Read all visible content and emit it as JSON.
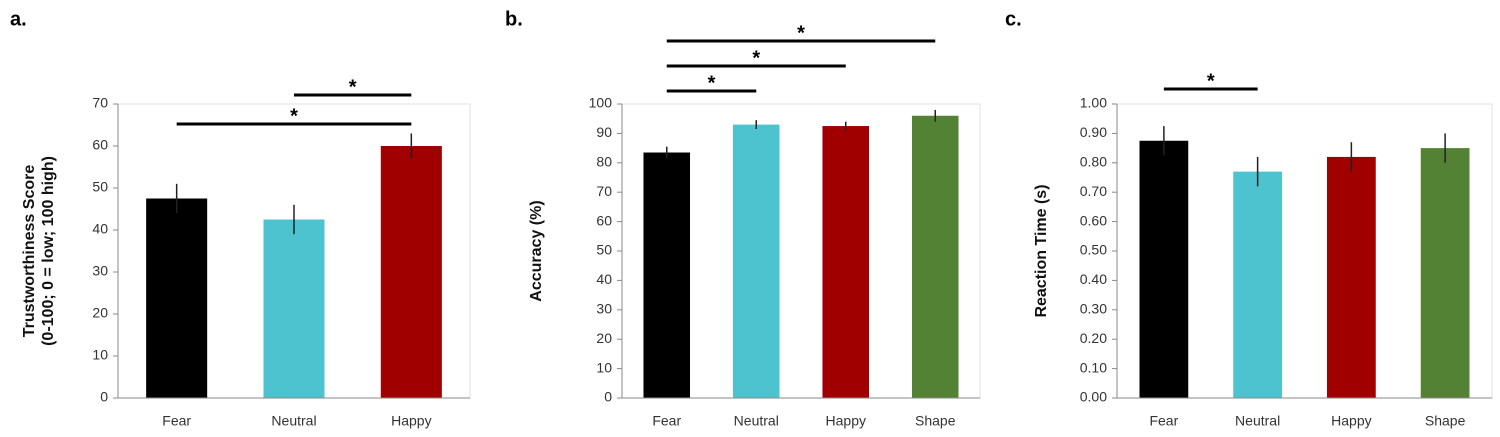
{
  "chart_data": [
    {
      "type": "bar",
      "panel_label": "a.",
      "ylabel": [
        "Trustworthiness Score",
        "(0-100; 0 = low; 100 high)"
      ],
      "categories": [
        "Fear",
        "Neutral",
        "Happy"
      ],
      "values": [
        47.5,
        42.5,
        60
      ],
      "errors": [
        3.5,
        3.5,
        3
      ],
      "colors": [
        "#000000",
        "#4dc3cf",
        "#a00000"
      ],
      "ylim": [
        0,
        70
      ],
      "yticks": [
        0,
        10,
        20,
        30,
        40,
        50,
        60,
        70
      ],
      "significance": [
        {
          "pair": [
            "Fear",
            "Happy"
          ],
          "label": "*"
        },
        {
          "pair": [
            "Neutral",
            "Happy"
          ],
          "label": "*"
        }
      ]
    },
    {
      "type": "bar",
      "panel_label": "b.",
      "ylabel": [
        "Accuracy (%)"
      ],
      "categories": [
        "Fear",
        "Neutral",
        "Happy",
        "Shape"
      ],
      "values": [
        83.5,
        93,
        92.5,
        96
      ],
      "errors": [
        2,
        1.5,
        1.5,
        2
      ],
      "colors": [
        "#000000",
        "#4dc3cf",
        "#a00000",
        "#548235"
      ],
      "ylim": [
        0,
        100
      ],
      "yticks": [
        0,
        10,
        20,
        30,
        40,
        50,
        60,
        70,
        80,
        90,
        100
      ],
      "significance": [
        {
          "pair": [
            "Fear",
            "Neutral"
          ],
          "label": "*"
        },
        {
          "pair": [
            "Fear",
            "Happy"
          ],
          "label": "*"
        },
        {
          "pair": [
            "Fear",
            "Shape"
          ],
          "label": "*"
        }
      ]
    },
    {
      "type": "bar",
      "panel_label": "c.",
      "ylabel": [
        "Reaction Time (s)"
      ],
      "categories": [
        "Fear",
        "Neutral",
        "Happy",
        "Shape"
      ],
      "values": [
        0.875,
        0.77,
        0.82,
        0.85
      ],
      "errors": [
        0.05,
        0.05,
        0.05,
        0.05
      ],
      "colors": [
        "#000000",
        "#4dc3cf",
        "#a00000",
        "#548235"
      ],
      "ylim": [
        0,
        1
      ],
      "yticks": [
        {
          "value": 0,
          "label": "0.00"
        },
        {
          "value": 0.1,
          "label": "0.10"
        },
        {
          "value": 0.2,
          "label": "0.20"
        },
        {
          "value": 0.3,
          "label": "0.30"
        },
        {
          "value": 0.4,
          "label": "0.40"
        },
        {
          "value": 0.5,
          "label": "0.50"
        },
        {
          "value": 0.6,
          "label": "0.60"
        },
        {
          "value": 0.7,
          "label": "0.70"
        },
        {
          "value": 0.8,
          "label": "0.80"
        },
        {
          "value": 0.9,
          "label": "0.90"
        },
        {
          "value": 1,
          "label": "1.00"
        }
      ],
      "significance": [
        {
          "pair": [
            "Fear",
            "Neutral"
          ],
          "label": "*"
        }
      ]
    }
  ]
}
